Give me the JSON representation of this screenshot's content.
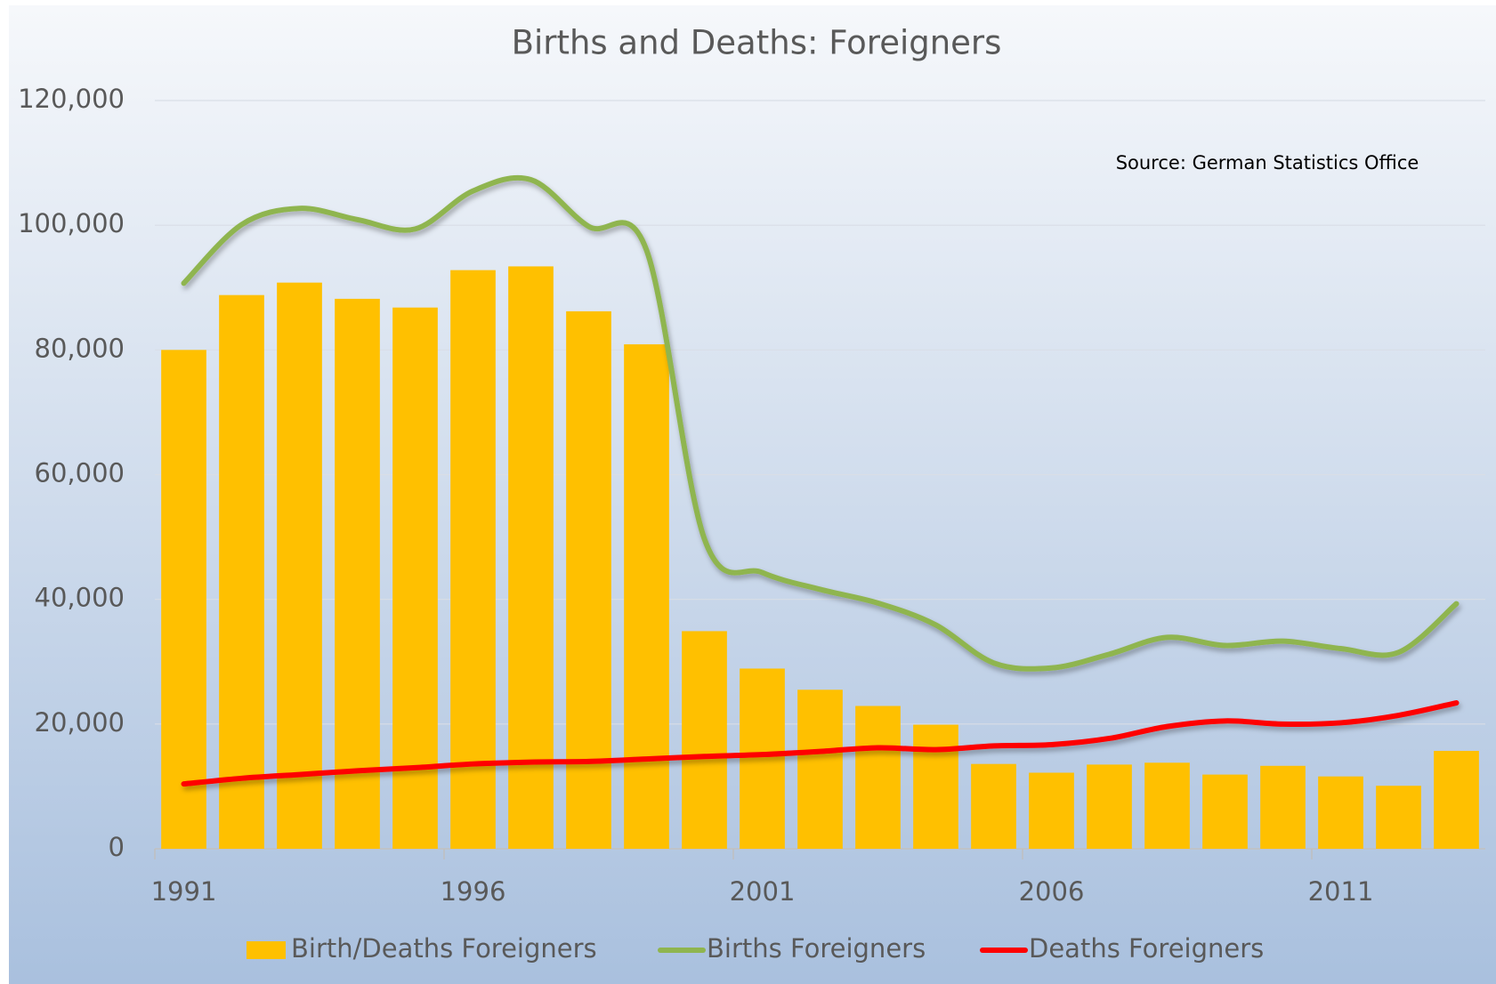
{
  "chart_data": {
    "type": "combo",
    "title": "Births and Deaths: Foreigners",
    "annotation": "Source: German Statistics Office",
    "categories": [
      "1991",
      null,
      null,
      null,
      null,
      "1996",
      null,
      null,
      null,
      null,
      "2001",
      null,
      null,
      null,
      null,
      "2006",
      null,
      null,
      null,
      null,
      "2011",
      null,
      null
    ],
    "series": [
      {
        "name": "Birth/Deaths Foreigners",
        "type": "bar",
        "color": "#ffc000",
        "values": [
          80000,
          88800,
          90800,
          88200,
          86800,
          92800,
          93400,
          86200,
          80900,
          34900,
          28900,
          25500,
          22900,
          19900,
          13600,
          12200,
          13500,
          13800,
          11900,
          13300,
          11600,
          10100,
          15700
        ]
      },
      {
        "name": "Births Foreigners",
        "type": "line",
        "color": "#8fb54f",
        "values": [
          90700,
          100100,
          102700,
          100900,
          99400,
          105500,
          107300,
          99800,
          96000,
          49700,
          44300,
          41600,
          39400,
          35900,
          29800,
          29000,
          31200,
          33900,
          32600,
          33300,
          32100,
          31500,
          39300
        ]
      },
      {
        "name": "Deaths Foreigners",
        "type": "line",
        "color": "#ff0000",
        "values": [
          10400,
          11300,
          11900,
          12500,
          13000,
          13600,
          13900,
          14000,
          14400,
          14800,
          15100,
          15600,
          16200,
          15900,
          16500,
          16700,
          17700,
          19600,
          20500,
          20000,
          20200,
          21400,
          23400
        ]
      }
    ],
    "ylim": [
      0,
      120000
    ],
    "yticks": [
      {
        "value": 0,
        "label": "0"
      },
      {
        "value": 20000,
        "label": "20,000"
      },
      {
        "value": 40000,
        "label": "40,000"
      },
      {
        "value": 60000,
        "label": "60,000"
      },
      {
        "value": 80000,
        "label": "80,000"
      },
      {
        "value": 100000,
        "label": "100,000"
      },
      {
        "value": 120000,
        "label": "120,000"
      }
    ],
    "grid": true,
    "legend": "bottom"
  }
}
